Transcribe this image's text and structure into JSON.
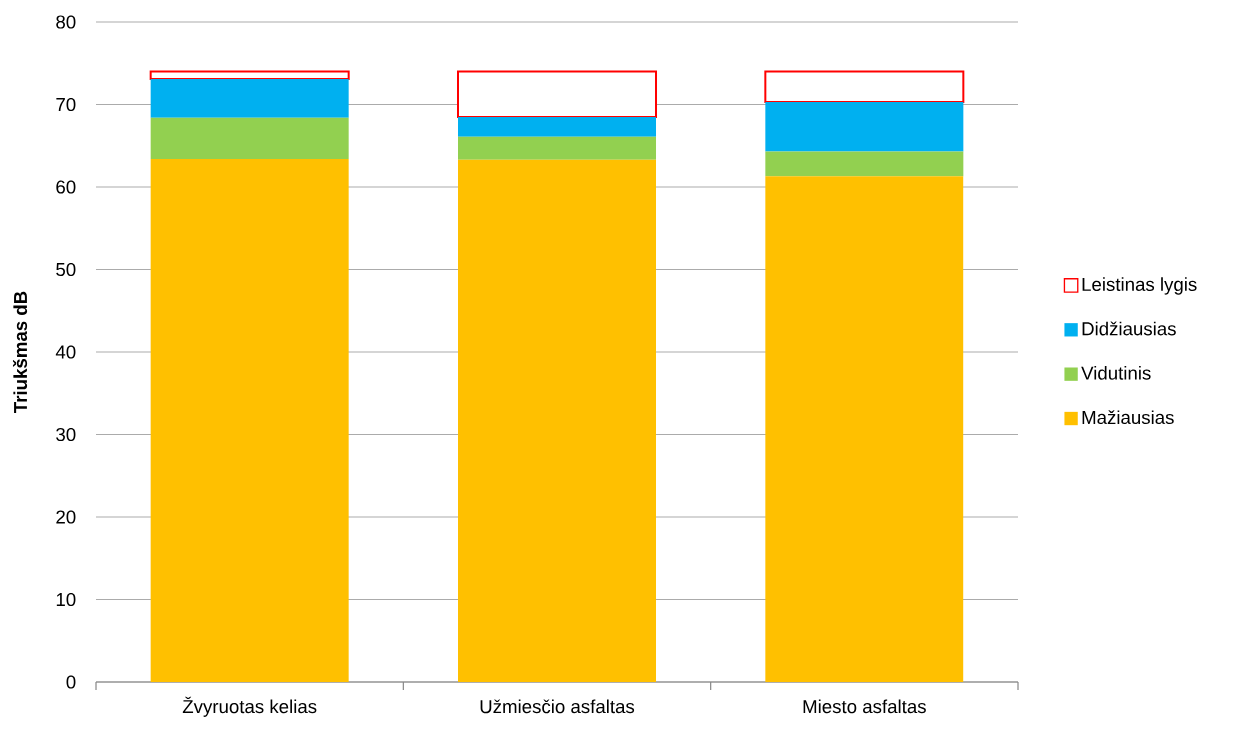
{
  "chart_data": {
    "type": "bar",
    "ylabel": "Triukšmas dB",
    "categories": [
      "Žvyruotas kelias",
      "Užmiesčio asfaltas",
      "Miesto asfaltas"
    ],
    "stacked": true,
    "series": [
      {
        "name": "Mažiausias",
        "color": "#ffc000",
        "values": [
          63.4,
          63.3,
          61.3
        ]
      },
      {
        "name": "Vidutinis",
        "color": "#92d050",
        "values": [
          5.0,
          2.8,
          3.0
        ]
      },
      {
        "name": "Didžiausias",
        "color": "#00b0f0",
        "values": [
          4.7,
          2.4,
          6.0
        ]
      },
      {
        "name": "Leistinas lygis",
        "color": "#ff0000",
        "values": [
          0.9,
          5.5,
          3.7
        ]
      }
    ],
    "ylim": [
      0,
      80
    ],
    "yticks": [
      0,
      10,
      20,
      30,
      40,
      50,
      60,
      70,
      80
    ],
    "grid": "y",
    "legend": "right"
  }
}
